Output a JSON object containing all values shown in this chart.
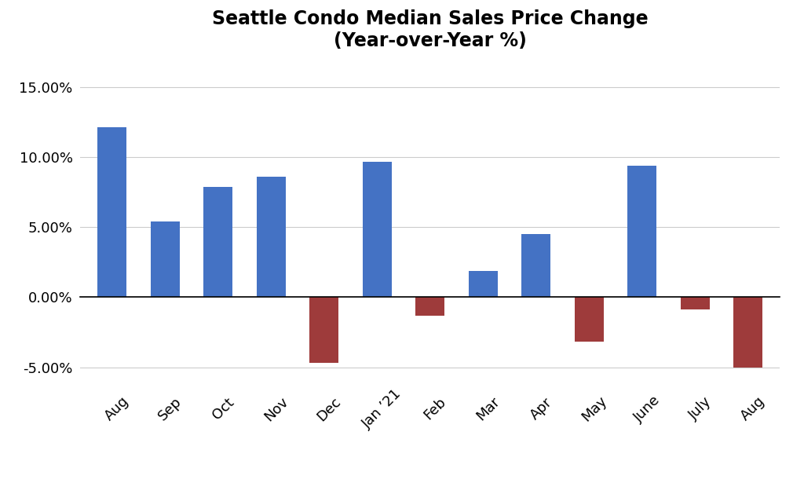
{
  "categories": [
    "Aug",
    "Sep",
    "Oct",
    "Nov",
    "Dec",
    "Jan ’21",
    "Feb",
    "Mar",
    "Apr",
    "May",
    "June",
    "July",
    "Aug"
  ],
  "values": [
    0.1215,
    0.054,
    0.079,
    0.086,
    -0.047,
    0.097,
    -0.013,
    0.019,
    0.045,
    -0.032,
    0.094,
    -0.009,
    -0.05
  ],
  "positive_color": "#4472C4",
  "negative_color": "#9E3B3B",
  "title_line1": "Seattle Condo Median Sales Price Change",
  "title_line2": "(Year-over-Year %)",
  "ylim": [
    -0.07,
    0.17
  ],
  "yticks": [
    -0.05,
    0.0,
    0.05,
    0.1,
    0.15
  ],
  "background_color": "#ffffff",
  "title_fontsize": 17,
  "tick_fontsize": 13,
  "bar_width": 0.55
}
